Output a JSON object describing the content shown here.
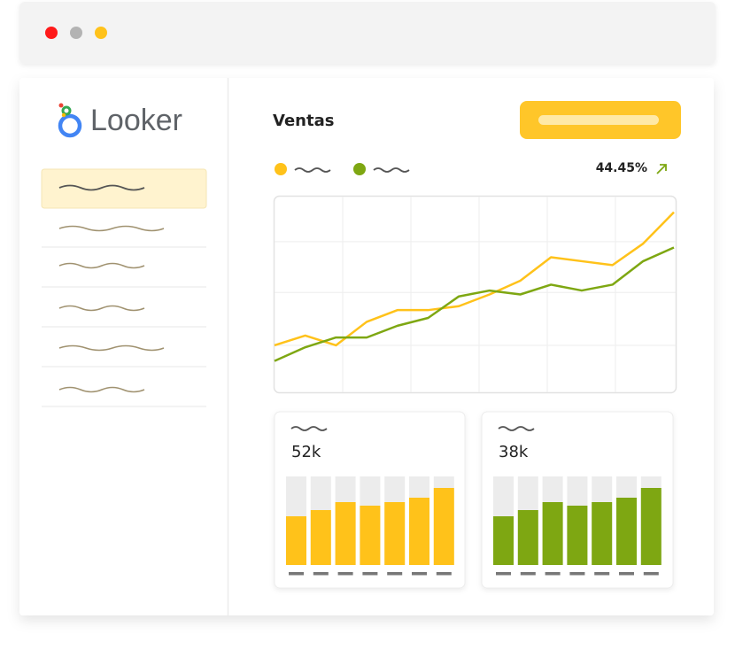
{
  "app": {
    "title": "Looker"
  },
  "panel": {
    "title": "Ventas",
    "change": "44.45%"
  },
  "line_chart": {
    "type": "line",
    "ylim": [
      0,
      100
    ],
    "yticks": [
      24,
      51,
      77
    ],
    "series": [
      {
        "color": "#ffc21a",
        "values": [
          24,
          29,
          24,
          36,
          42,
          42,
          44,
          50,
          57,
          69,
          67,
          65,
          76,
          92
        ]
      },
      {
        "color": "#7ea712",
        "values": [
          16,
          23,
          28,
          28,
          34,
          38,
          49,
          52,
          50,
          55,
          52,
          55,
          67,
          74
        ]
      }
    ]
  },
  "cards": [
    {
      "value": "52k",
      "type": "bar",
      "ylim": [
        0,
        100
      ],
      "color": "#ffc21a",
      "values": [
        55,
        62,
        71,
        67,
        71,
        76,
        87
      ]
    },
    {
      "value": "38k",
      "type": "bar",
      "ylim": [
        0,
        100
      ],
      "color": "#7ea712",
      "values": [
        55,
        62,
        71,
        67,
        71,
        76,
        87
      ]
    }
  ]
}
